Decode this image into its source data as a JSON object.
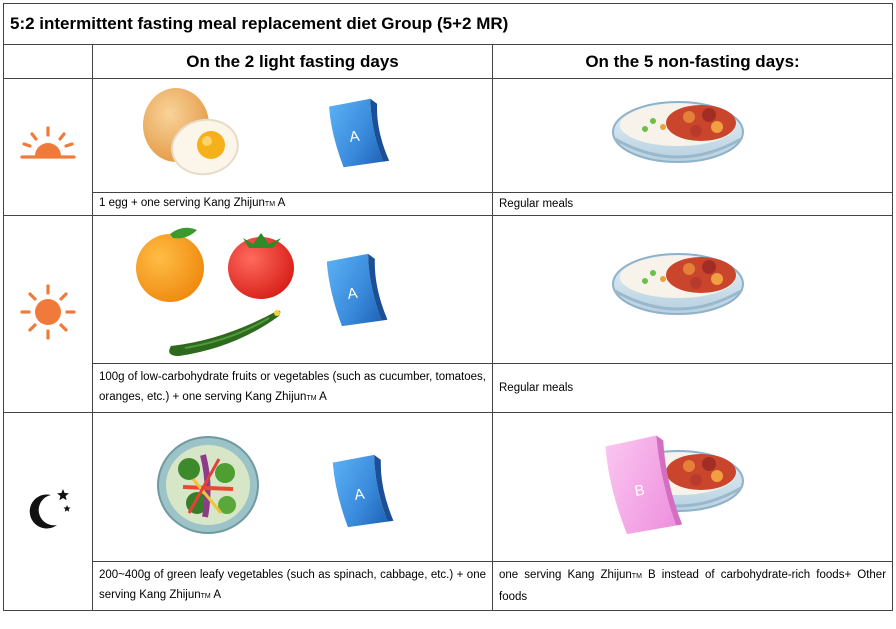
{
  "title": "5:2 intermittent fasting meal replacement diet Group (5+2 MR)",
  "columns": {
    "fasting": "On the 2 light fasting days",
    "non_fasting": "On the 5 non-fasting days:"
  },
  "packs": {
    "a_label": "A",
    "b_label": "B"
  },
  "rows": [
    {
      "period_icon": "sunrise-icon",
      "fasting_caption_pre": "1 egg + one serving Kang Zhijun",
      "fasting_caption_tm": "TM",
      "fasting_caption_post": " A",
      "non_fasting_caption": "Regular meals"
    },
    {
      "period_icon": "sun-icon",
      "fasting_caption_pre": "100g of low-carbohydrate fruits or vegetables (such as cucumber, tomatoes, oranges, etc.) + one serving Kang Zhijun",
      "fasting_caption_tm": "TM",
      "fasting_caption_post": " A",
      "non_fasting_caption": "Regular meals"
    },
    {
      "period_icon": "moon-stars-icon",
      "fasting_caption_pre": "200~400g of green leafy vegetables (such as spinach, cabbage, etc.) + one serving Kang Zhijun",
      "fasting_caption_tm": "TM",
      "fasting_caption_post": " A",
      "non_fasting_caption_pre": "one serving Kang Zhijun",
      "non_fasting_caption_tm": "TM",
      "non_fasting_caption_post": " B instead of carbohydrate-rich foods+ Other foods"
    }
  ],
  "colors": {
    "sun_orange": "#f07a3a",
    "pack_a_blue": "#3d8fde",
    "pack_b_pink": "#f4a6e6",
    "border": "#444444"
  }
}
